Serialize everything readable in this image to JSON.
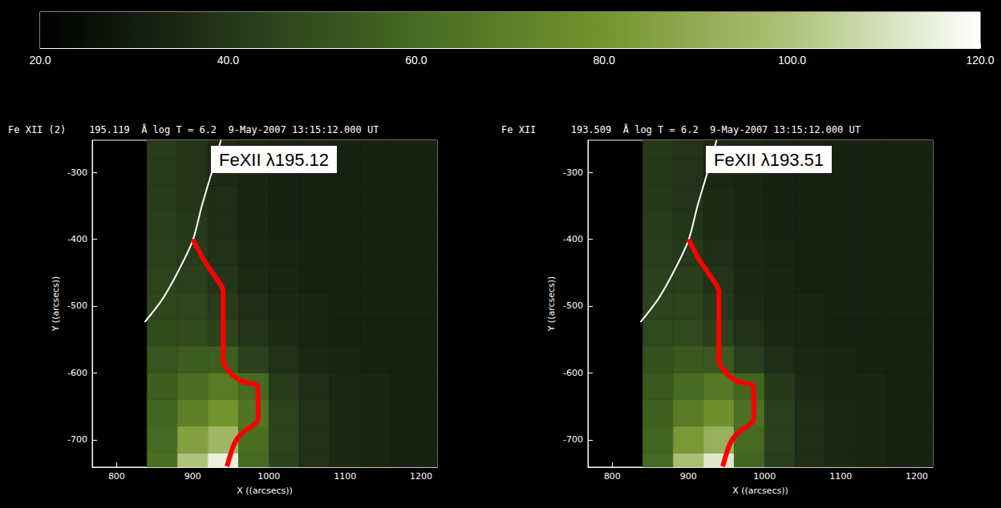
{
  "chart_data": [
    {
      "type": "colorbar",
      "xlim": [
        20,
        120
      ],
      "xticks": [
        {
          "value": 20,
          "label": "20.0"
        },
        {
          "value": 40,
          "label": "40.0"
        },
        {
          "value": 60,
          "label": "60.0"
        },
        {
          "value": 80,
          "label": "80.0"
        },
        {
          "value": 100,
          "label": "100.0"
        },
        {
          "value": 120,
          "label": "120.0"
        }
      ],
      "colors": [
        "#000000",
        "#24361a",
        "#476a22",
        "#74942e",
        "#aec37a",
        "#ffffff"
      ]
    },
    {
      "type": "heatmap",
      "title": "Fe XII (2)    195.119  Å log T = 6.2  9-May-2007 13:15:12.000 UT",
      "annotations": [
        "FeXII λ195.12"
      ],
      "xlabel": "X ((arcsecs))",
      "ylabel": "Y ((arcsecs))",
      "xlim": [
        768,
        1221
      ],
      "ylim": [
        -741,
        -252
      ],
      "xticks": [
        800,
        900,
        1000,
        1100,
        1200
      ],
      "yticks": [
        -700,
        -600,
        -500,
        -400,
        -300
      ],
      "x_edges": [
        840,
        880,
        920,
        960,
        1000,
        1040,
        1080,
        1120,
        1160,
        1200,
        1240
      ],
      "y_edges": [
        -760,
        -720,
        -680,
        -640,
        -600,
        -560,
        -520,
        -480,
        -440,
        -400,
        -360,
        -320,
        -280,
        -240
      ],
      "cells": [
        [
          62,
          100,
          115,
          60,
          44,
          38,
          35,
          34,
          33,
          33
        ],
        [
          60,
          85,
          95,
          62,
          45,
          38,
          35,
          34,
          33,
          33
        ],
        [
          58,
          70,
          80,
          65,
          45,
          38,
          35,
          34,
          33,
          33
        ],
        [
          55,
          62,
          68,
          60,
          42,
          37,
          35,
          34,
          33,
          33
        ],
        [
          52,
          55,
          55,
          44,
          38,
          35,
          34,
          33,
          33,
          33
        ],
        [
          48,
          48,
          45,
          39,
          36,
          34,
          33,
          33,
          33,
          33
        ],
        [
          46,
          46,
          42,
          37,
          35,
          34,
          33,
          33,
          33,
          33
        ],
        [
          45,
          44,
          40,
          36,
          34,
          33,
          33,
          33,
          33,
          33
        ],
        [
          44,
          42,
          38,
          35,
          34,
          33,
          33,
          33,
          33,
          33
        ],
        [
          43,
          41,
          37,
          34,
          33,
          33,
          33,
          33,
          33,
          33
        ],
        [
          42,
          40,
          37,
          34,
          33,
          33,
          33,
          33,
          33,
          33
        ],
        [
          42,
          40,
          36,
          34,
          33,
          33,
          33,
          33,
          33,
          33
        ],
        [
          42,
          40,
          36,
          34,
          33,
          33,
          33,
          33,
          33,
          33
        ]
      ],
      "lines": [
        {
          "color": "#ffffff",
          "line_style": "solid",
          "x": [
            937,
            925,
            912,
            900,
            880,
            860,
            837
          ],
          "y": [
            -252,
            -300,
            -350,
            -402,
            -450,
            -490,
            -524
          ]
        },
        {
          "color": "#ff0000",
          "line_style": "thick",
          "x": [
            900,
            915,
            930,
            940,
            940,
            948,
            965,
            985,
            986,
            985,
            965,
            955,
            945
          ],
          "y": [
            -400,
            -432,
            -457,
            -478,
            -580,
            -598,
            -613,
            -620,
            -660,
            -672,
            -690,
            -705,
            -740
          ]
        }
      ]
    },
    {
      "type": "heatmap",
      "title": "Fe XII      193.509  Å log T = 6.2  9-May-2007 13:15:12.000 UT",
      "annotations": [
        "FeXII λ193.51"
      ],
      "xlabel": "X ((arcsecs))",
      "ylabel": "Y ((arcsecs))",
      "xlim": [
        768,
        1221
      ],
      "ylim": [
        -741,
        -252
      ],
      "xticks": [
        800,
        900,
        1000,
        1100,
        1200
      ],
      "yticks": [
        -700,
        -600,
        -500,
        -400,
        -300
      ],
      "x_edges": [
        840,
        880,
        920,
        960,
        1000,
        1040,
        1080,
        1120,
        1160,
        1200,
        1240
      ],
      "y_edges": [
        -760,
        -720,
        -680,
        -640,
        -600,
        -560,
        -520,
        -480,
        -440,
        -400,
        -360,
        -320,
        -280,
        -240
      ],
      "cells": [
        [
          60,
          98,
          112,
          58,
          43,
          37,
          35,
          34,
          33,
          33
        ],
        [
          58,
          82,
          92,
          60,
          44,
          37,
          35,
          34,
          33,
          33
        ],
        [
          56,
          68,
          78,
          63,
          44,
          37,
          35,
          34,
          33,
          33
        ],
        [
          53,
          60,
          66,
          58,
          41,
          36,
          34,
          34,
          33,
          33
        ],
        [
          50,
          53,
          53,
          43,
          37,
          35,
          34,
          33,
          33,
          33
        ],
        [
          47,
          47,
          44,
          38,
          35,
          34,
          33,
          33,
          33,
          33
        ],
        [
          45,
          45,
          41,
          36,
          34,
          34,
          33,
          33,
          33,
          33
        ],
        [
          44,
          43,
          39,
          35,
          34,
          33,
          33,
          33,
          33,
          33
        ],
        [
          43,
          41,
          37,
          35,
          34,
          33,
          33,
          33,
          33,
          33
        ],
        [
          42,
          40,
          36,
          34,
          33,
          33,
          33,
          33,
          33,
          33
        ],
        [
          41,
          39,
          36,
          34,
          33,
          33,
          33,
          33,
          33,
          33
        ],
        [
          41,
          39,
          35,
          34,
          33,
          33,
          33,
          33,
          33,
          33
        ],
        [
          41,
          39,
          35,
          34,
          33,
          33,
          33,
          33,
          33,
          33
        ]
      ],
      "lines": [
        {
          "color": "#ffffff",
          "line_style": "solid",
          "x": [
            937,
            925,
            912,
            900,
            880,
            860,
            837
          ],
          "y": [
            -252,
            -300,
            -350,
            -402,
            -450,
            -490,
            -524
          ]
        },
        {
          "color": "#ff0000",
          "line_style": "thick",
          "x": [
            900,
            915,
            930,
            940,
            940,
            948,
            965,
            985,
            986,
            985,
            965,
            955,
            945
          ],
          "y": [
            -400,
            -432,
            -457,
            -478,
            -580,
            -598,
            -613,
            -620,
            -660,
            -672,
            -690,
            -705,
            -740
          ]
        }
      ]
    }
  ]
}
